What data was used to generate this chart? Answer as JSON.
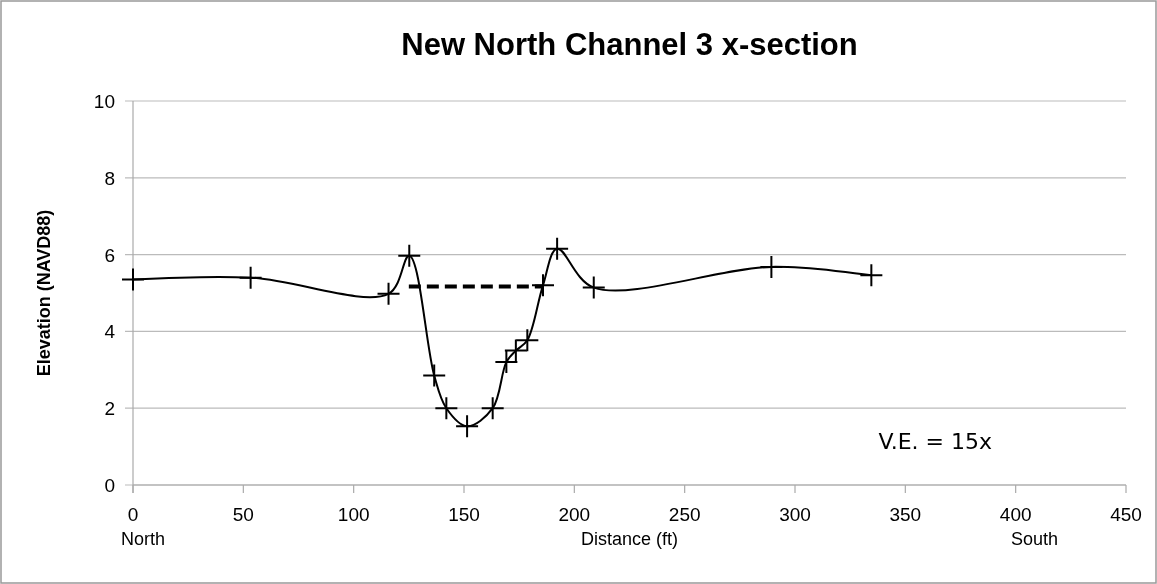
{
  "chart_data": {
    "type": "line",
    "title": "New North Channel 3 x-section",
    "xlabel": "Distance (ft)",
    "ylabel": "Elevation (NAVD88)",
    "series": [
      {
        "color": "#000000",
        "marker": "cross",
        "line_style": "solid",
        "x": [
          0,
          53.3,
          115.8,
          125.2,
          136.5,
          142,
          151.4,
          163,
          169.2,
          173.5,
          178.7,
          185.8,
          192.2,
          208.8,
          289.3,
          334.6
        ],
        "values": [
          5.35,
          5.4,
          4.98,
          5.97,
          2.85,
          2.0,
          1.53,
          2.0,
          3.2,
          3.5,
          3.77,
          5.2,
          6.15,
          5.14,
          5.68,
          5.46
        ]
      },
      {
        "color": "#000000",
        "marker": "none",
        "line_style": "dashed",
        "x": [
          125,
          186
        ],
        "values": [
          5.17,
          5.17
        ]
      }
    ],
    "xlim": [
      0,
      450
    ],
    "xticks": [
      0,
      50,
      100,
      150,
      200,
      250,
      300,
      350,
      400,
      450
    ],
    "ylim": [
      0,
      10
    ],
    "yticks": [
      0,
      2,
      4,
      6,
      8,
      10
    ],
    "grid": "y",
    "annotations": [
      "North",
      "South",
      "V.E. = 15x"
    ]
  }
}
